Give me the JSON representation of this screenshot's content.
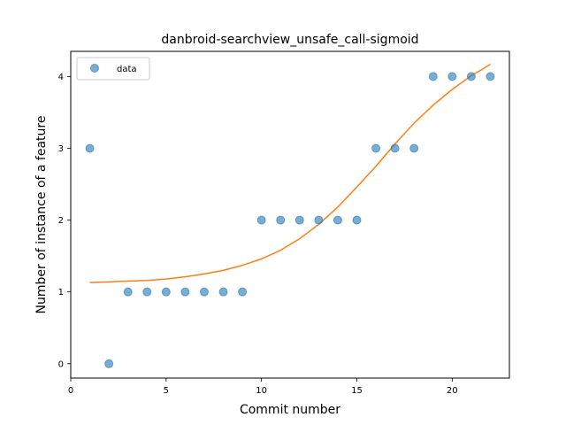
{
  "chart_data": {
    "type": "scatter",
    "title": "danbroid-searchview_unsafe_call-sigmoid",
    "xlabel": "Commit number",
    "ylabel": "Number of instance of a feature",
    "xlim": [
      0,
      23
    ],
    "ylim": [
      -0.2,
      4.35
    ],
    "xticks": [
      0,
      5,
      10,
      15,
      20
    ],
    "yticks": [
      0,
      1,
      2,
      3,
      4
    ],
    "grid": false,
    "legend_position": "top-left",
    "series": [
      {
        "name": "data",
        "kind": "scatter",
        "color": "#1f77b4",
        "x": [
          1,
          2,
          3,
          4,
          5,
          6,
          7,
          8,
          9,
          10,
          11,
          12,
          13,
          14,
          15,
          16,
          17,
          18,
          19,
          20,
          21,
          22
        ],
        "y": [
          3,
          0,
          1,
          1,
          1,
          1,
          1,
          1,
          1,
          2,
          2,
          2,
          2,
          2,
          2,
          3,
          3,
          3,
          4,
          4,
          4,
          4
        ]
      },
      {
        "name": "",
        "kind": "line",
        "color": "#ff7f0e",
        "x": [
          1,
          2,
          3,
          4,
          5,
          6,
          7,
          8,
          9,
          10,
          11,
          12,
          13,
          14,
          15,
          16,
          17,
          18,
          19,
          20,
          21,
          22
        ],
        "y": [
          1.13,
          1.14,
          1.15,
          1.16,
          1.18,
          1.21,
          1.25,
          1.3,
          1.37,
          1.46,
          1.58,
          1.74,
          1.94,
          2.18,
          2.46,
          2.75,
          3.06,
          3.35,
          3.6,
          3.82,
          4.01,
          4.17
        ]
      }
    ]
  }
}
